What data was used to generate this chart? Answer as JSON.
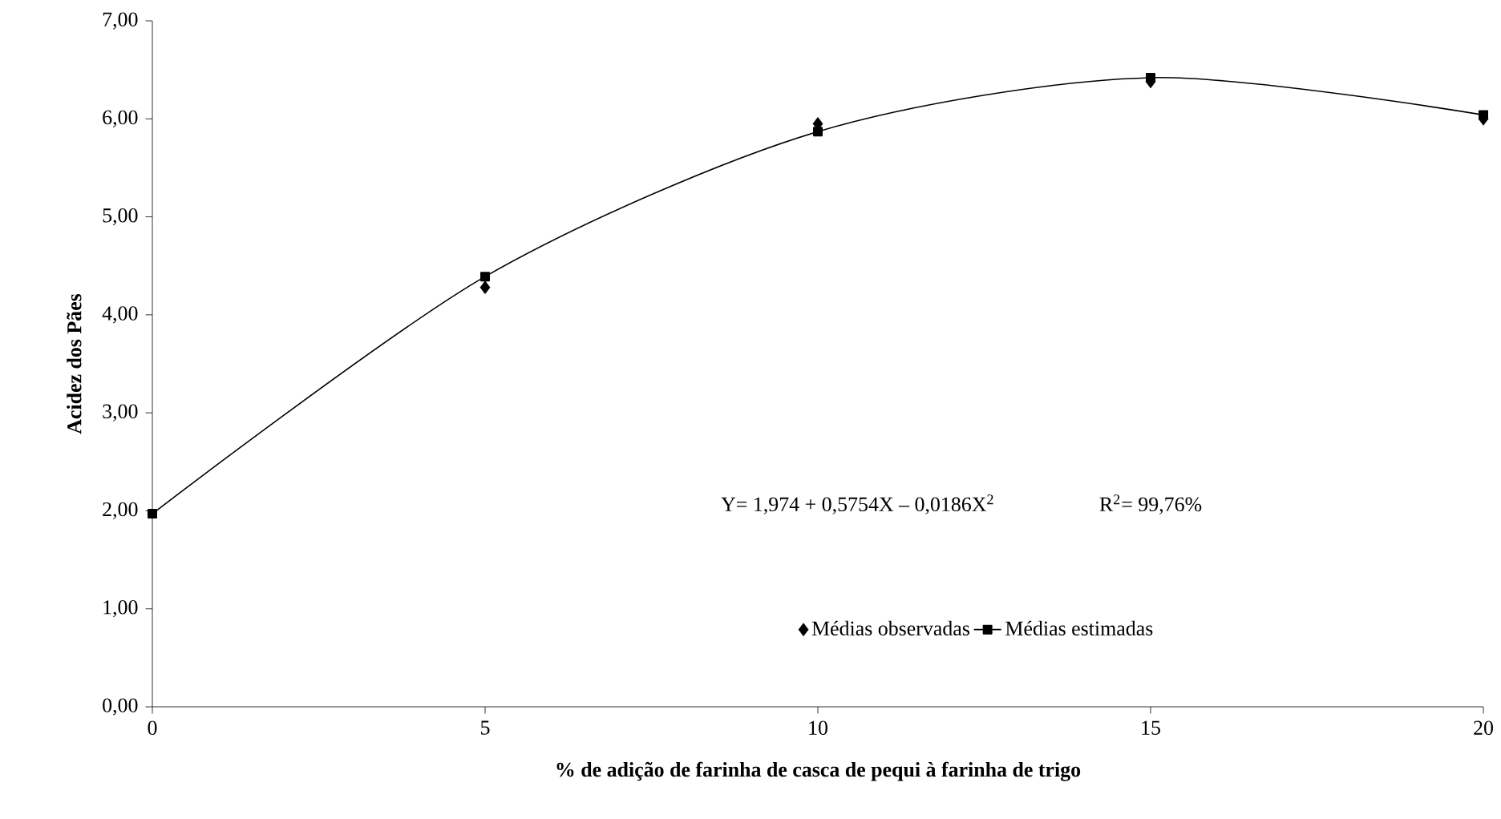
{
  "chart_data": {
    "type": "line",
    "xlabel": "% de adição de farinha de casca de pequi à farinha de trigo",
    "ylabel": "Acidez dos Pães",
    "x": [
      0,
      5,
      10,
      15,
      20
    ],
    "series": [
      {
        "name": "Médias observadas",
        "type": "scatter",
        "marker": "diamond",
        "color": "#000000",
        "values": [
          null,
          4.28,
          5.95,
          6.38,
          6.0
        ]
      },
      {
        "name": "Médias estimadas",
        "marker": "square",
        "color": "#000000",
        "values": [
          1.97,
          4.39,
          5.87,
          6.42,
          6.04
        ]
      }
    ],
    "xlim": [
      0,
      20
    ],
    "xticks": [
      0,
      5,
      10,
      15,
      20
    ],
    "ylim": [
      0,
      7
    ],
    "yticks": [
      {
        "value": 0,
        "label": "0,00"
      },
      {
        "value": 1,
        "label": "1,00"
      },
      {
        "value": 2,
        "label": "2,00"
      },
      {
        "value": 3,
        "label": "3,00"
      },
      {
        "value": 4,
        "label": "4,00"
      },
      {
        "value": 5,
        "label": "5,00"
      },
      {
        "value": 6,
        "label": "6,00"
      },
      {
        "value": 7,
        "label": "7,00"
      }
    ],
    "annotations": [
      "Y= 1,974 + 0,5754X – 0,0186X$^{2}$",
      "R$^{2}$= 99,76%"
    ],
    "legend": "bottom",
    "grid": false
  }
}
